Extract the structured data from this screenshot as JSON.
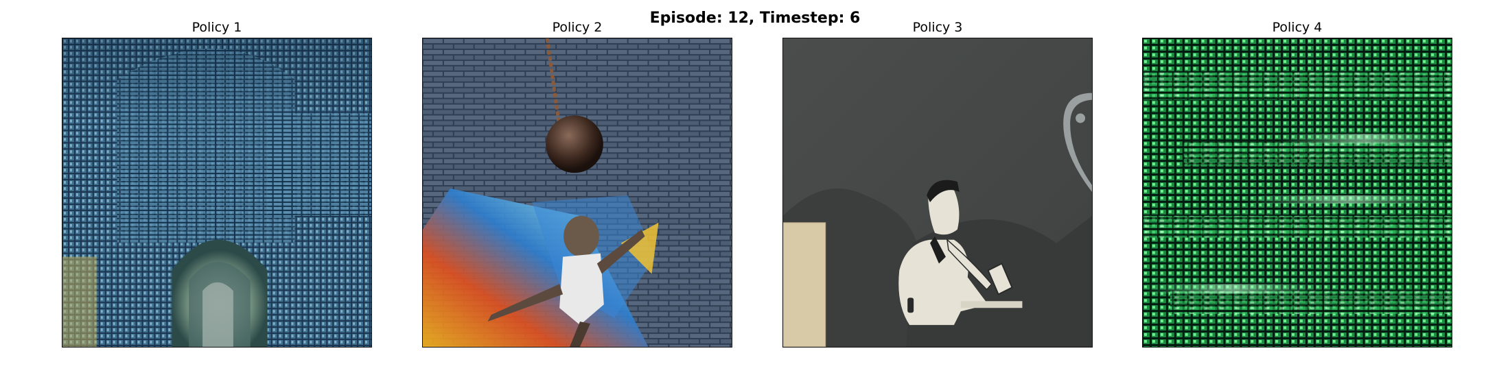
{
  "figure": {
    "title": "Episode: 12, Timestep: 6"
  },
  "panels": [
    {
      "title": "Policy 1",
      "image": "blue-circuit-archway-image"
    },
    {
      "title": "Policy 2",
      "image": "brick-wall-wrecking-ball-mural-image"
    },
    {
      "title": "Policy 3",
      "image": "gray-paper-cutout-man-image"
    },
    {
      "title": "Policy 4",
      "image": "green-matrix-grid-image"
    }
  ]
}
